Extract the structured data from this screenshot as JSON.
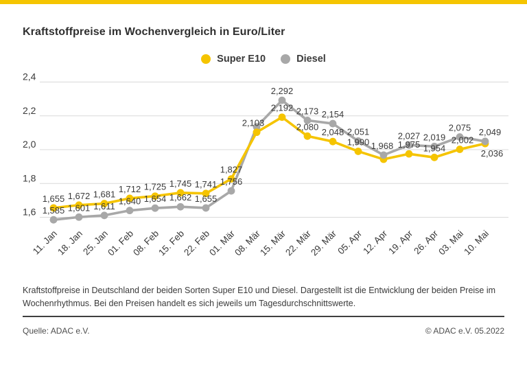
{
  "accent_color": "#F5C500",
  "title": "Kraftstoffpreise im Wochenvergleich in Euro/Liter",
  "legend": {
    "super_e10": {
      "label": "Super E10",
      "color": "#F5C400"
    },
    "diesel": {
      "label": "Diesel",
      "color": "#A8A8A8"
    }
  },
  "chart_data": {
    "type": "line",
    "title": "Kraftstoffpreise im Wochenvergleich in Euro/Liter",
    "ylabel": "Euro/Liter",
    "xlabel": "",
    "grid": true,
    "legend_position": "top",
    "ylim": [
      1.5,
      2.45
    ],
    "y_gridlines": [
      2.4,
      2.2,
      2.0,
      1.8,
      1.6
    ],
    "y_tick_labels": [
      "2,4",
      "2,2",
      "2,0",
      "1,8",
      "1,6"
    ],
    "categories": [
      "11. Jan",
      "18. Jan",
      "25. Jan",
      "01. Feb",
      "08. Feb",
      "15. Feb",
      "22. Feb",
      "01. Mär",
      "08. Mär",
      "15. Mär",
      "22. Mär",
      "29. Mär",
      "05. Apr",
      "12. Apr",
      "19. Apr",
      "26. Apr",
      "03. Mai",
      "10. Mai"
    ],
    "series": [
      {
        "name": "Super E10",
        "color": "#F5C400",
        "values": [
          1.655,
          1.672,
          1.681,
          1.712,
          1.725,
          1.745,
          1.741,
          1.827,
          2.103,
          2.192,
          2.08,
          2.048,
          1.99,
          1.943,
          1.975,
          1.954,
          2.002,
          2.036
        ],
        "labels": [
          "1,655",
          "1,672",
          "1,681",
          "1,712",
          "1,725",
          "1,745",
          "1,741",
          "1,827",
          "2,103",
          "2,192",
          "2,080",
          "2,048",
          "1,990",
          null,
          "1,975",
          "1,954",
          "2,002",
          "2,036"
        ]
      },
      {
        "name": "Diesel",
        "color": "#A8A8A8",
        "values": [
          1.585,
          1.601,
          1.611,
          1.64,
          1.654,
          1.662,
          1.655,
          1.756,
          2.135,
          2.292,
          2.173,
          2.154,
          2.051,
          1.968,
          2.027,
          2.019,
          2.075,
          2.049
        ],
        "labels": [
          "1,585",
          "1,601",
          "1,611",
          "1,640",
          "1,654",
          "1,662",
          "1,655",
          "1,756",
          null,
          "2,292",
          "2,173",
          "2,154",
          "2,051",
          "1,968",
          "2,027",
          "2,019",
          "2,075",
          "2,049"
        ]
      }
    ]
  },
  "footnote": "Kraftstoffpreise in Deutschland der beiden Sorten Super E10 und Diesel. Dargestellt ist die Entwicklung der beiden Preise im Wochenrhythmus. Bei den Preisen handelt es sich jeweils um Tagesdurchschnittswerte.",
  "source": "Quelle: ADAC e.V.",
  "copyright": "© ADAC e.V. 05.2022"
}
